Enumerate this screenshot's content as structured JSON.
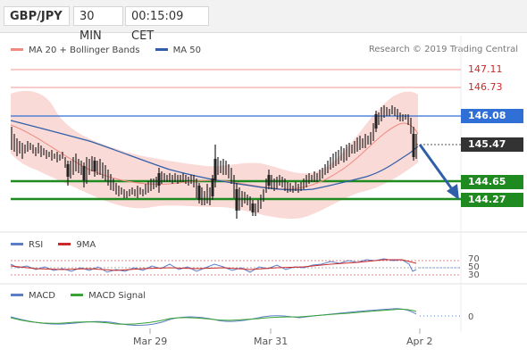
{
  "header": {
    "symbol": "GBP/JPY",
    "timeframe": "30 MIN",
    "time": "00:15:09 CET"
  },
  "legend_main": {
    "items": [
      {
        "label": "MA 20 + Bollinger Bands",
        "color": "#f08a80"
      },
      {
        "label": "MA 50",
        "color": "#2f5fa8"
      }
    ],
    "credit": "Research © 2019 Trading Central"
  },
  "price_levels": {
    "resistance2": "147.11",
    "resistance1": "146.73",
    "pivot": "146.08",
    "current": "145.47",
    "support1": "144.65",
    "support2": "144.27"
  },
  "legend_rsi": {
    "items": [
      {
        "label": "RSI",
        "color": "#5b7fc7"
      },
      {
        "label": "9MA",
        "color": "#cc2a2a"
      }
    ]
  },
  "rsi_levels": {
    "upper": "70",
    "mid": "50",
    "lower": "30"
  },
  "legend_macd": {
    "items": [
      {
        "label": "MACD",
        "color": "#5b7fc7"
      },
      {
        "label": "MACD Signal",
        "color": "#3aa335"
      }
    ]
  },
  "macd_levels": {
    "zero": "0"
  },
  "dates": [
    "Mar 29",
    "Mar 31",
    "Apr 2"
  ],
  "colors": {
    "resistance": "#cc2a2a",
    "pivot": "#2f6fd6",
    "support": "#1f8a1f",
    "current": "#333333",
    "band": "#f9d4d0",
    "arrow": "#2f5fa8"
  }
}
